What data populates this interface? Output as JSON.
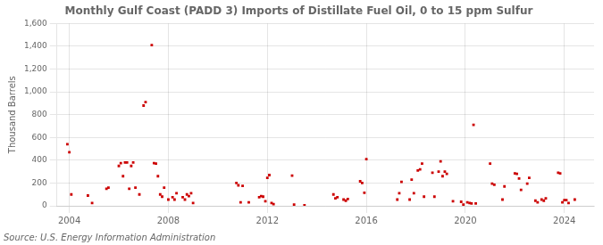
{
  "chart_data": {
    "type": "scatter",
    "title": "Monthly Gulf Coast (PADD 3) Imports of Distillate Fuel Oil, 0 to 15 ppm Sulfur",
    "y_label": "Thousand Barrels",
    "annotations": [
      "Source: U.S. Energy Information Administration"
    ],
    "color": "#cc0000",
    "marker": "square",
    "grid": true,
    "xlim": [
      2003.5,
      2025.2
    ],
    "xticks": [
      2004,
      2008,
      2012,
      2016,
      2020,
      2024
    ],
    "ylim": [
      0,
      1600
    ],
    "yticks": [
      0,
      200,
      400,
      600,
      800,
      {
        "value": 1000,
        "label": "1,000"
      },
      {
        "value": 1200,
        "label": "1,200"
      },
      {
        "value": 1400,
        "label": "1,400"
      },
      {
        "value": 1600,
        "label": "1,600"
      }
    ],
    "x": [
      2003.92,
      2004.0,
      2004.08,
      2004.75,
      2004.92,
      2005.5,
      2005.58,
      2006.0,
      2006.08,
      2006.17,
      2006.25,
      2006.33,
      2006.42,
      2006.5,
      2006.58,
      2006.67,
      2006.83,
      2007.0,
      2007.08,
      2007.33,
      2007.42,
      2007.5,
      2007.58,
      2007.67,
      2007.75,
      2007.83,
      2008.0,
      2008.17,
      2008.25,
      2008.33,
      2008.58,
      2008.67,
      2008.75,
      2008.83,
      2008.92,
      2009.0,
      2010.75,
      2010.83,
      2010.92,
      2011.0,
      2011.25,
      2011.67,
      2011.75,
      2011.83,
      2011.92,
      2012.0,
      2012.08,
      2012.17,
      2012.25,
      2013.0,
      2013.08,
      2013.5,
      2014.67,
      2014.75,
      2014.83,
      2015.08,
      2015.17,
      2015.25,
      2015.75,
      2015.83,
      2015.92,
      2016.0,
      2017.25,
      2017.33,
      2017.42,
      2017.75,
      2017.83,
      2017.92,
      2018.08,
      2018.17,
      2018.25,
      2018.33,
      2018.67,
      2018.75,
      2018.92,
      2019.0,
      2019.08,
      2019.17,
      2019.25,
      2019.5,
      2019.83,
      2019.92,
      2020.08,
      2020.17,
      2020.25,
      2020.33,
      2020.42,
      2021.0,
      2021.08,
      2021.17,
      2021.5,
      2021.58,
      2022.0,
      2022.08,
      2022.17,
      2022.25,
      2022.5,
      2022.58,
      2022.83,
      2022.92,
      2023.08,
      2023.17,
      2023.25,
      2023.75,
      2023.83,
      2023.92,
      2024.0,
      2024.08,
      2024.17,
      2024.42
    ],
    "values": [
      540,
      470,
      100,
      90,
      25,
      150,
      160,
      350,
      375,
      260,
      380,
      380,
      150,
      350,
      380,
      160,
      100,
      880,
      910,
      1410,
      375,
      370,
      260,
      100,
      80,
      160,
      55,
      75,
      55,
      110,
      75,
      55,
      100,
      85,
      110,
      25,
      200,
      180,
      30,
      175,
      30,
      75,
      85,
      80,
      40,
      245,
      270,
      25,
      15,
      265,
      10,
      5,
      100,
      65,
      75,
      55,
      45,
      60,
      215,
      200,
      115,
      410,
      55,
      110,
      210,
      55,
      230,
      110,
      310,
      320,
      370,
      80,
      290,
      80,
      300,
      390,
      260,
      300,
      280,
      40,
      35,
      10,
      30,
      25,
      20,
      710,
      20,
      370,
      195,
      185,
      55,
      170,
      285,
      280,
      240,
      140,
      195,
      245,
      45,
      30,
      55,
      45,
      65,
      290,
      285,
      30,
      50,
      50,
      25,
      55
    ]
  }
}
